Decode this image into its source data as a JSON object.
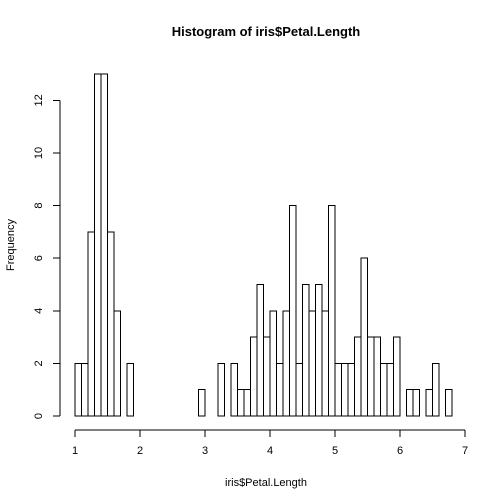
{
  "chart_data": {
    "type": "bar",
    "title": "Histogram of iris$Petal.Length",
    "xlabel": "iris$Petal.Length",
    "ylabel": "Frequency",
    "xlim": [
      1,
      7
    ],
    "ylim": [
      0,
      13
    ],
    "x_ticks": [
      1,
      2,
      3,
      4,
      5,
      6,
      7
    ],
    "x_tick_labels": [
      "1",
      "2",
      "3",
      "4",
      "5",
      "6",
      "7"
    ],
    "y_ticks": [
      0,
      2,
      4,
      6,
      8,
      10,
      12
    ],
    "y_tick_labels": [
      "0",
      "2",
      "4",
      "6",
      "8",
      "10",
      "12"
    ],
    "bin_start": 1.0,
    "bin_width": 0.1,
    "values": [
      2,
      2,
      7,
      13,
      13,
      7,
      4,
      0,
      2,
      0,
      0,
      0,
      0,
      0,
      0,
      0,
      0,
      0,
      0,
      1,
      0,
      0,
      2,
      0,
      2,
      1,
      1,
      3,
      5,
      3,
      4,
      2,
      4,
      8,
      2,
      5,
      4,
      5,
      4,
      8,
      2,
      2,
      2,
      3,
      6,
      3,
      3,
      2,
      2,
      3,
      0,
      1,
      1,
      0,
      1,
      2,
      0,
      1
    ],
    "grid": false,
    "legend": "none"
  }
}
